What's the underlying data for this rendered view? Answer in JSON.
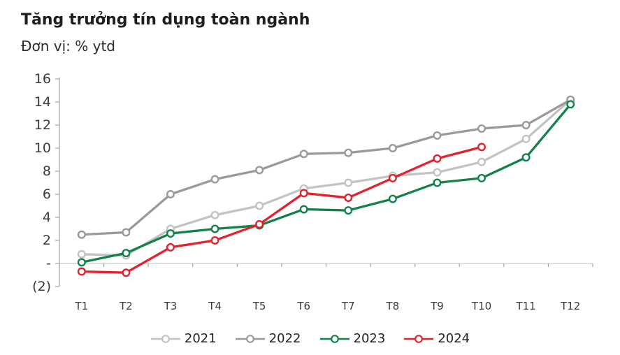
{
  "header": {
    "title": "Tăng trưởng tín dụng toàn ngành",
    "subtitle": "Đơn vị: % ytd"
  },
  "chart_data": {
    "type": "line",
    "title": "Tăng trưởng tín dụng toàn ngành",
    "unit_label": "Đơn vị: % ytd",
    "categories": [
      "T1",
      "T2",
      "T3",
      "T4",
      "T5",
      "T6",
      "T7",
      "T8",
      "T9",
      "T10",
      "T11",
      "T12"
    ],
    "series": [
      {
        "name": "2021",
        "color": "#c3c3c3",
        "values": [
          0.8,
          0.7,
          3.0,
          4.2,
          5.0,
          6.5,
          7.0,
          7.6,
          7.9,
          8.8,
          10.8,
          14.2
        ]
      },
      {
        "name": "2022",
        "color": "#9a9a9a",
        "values": [
          2.5,
          2.7,
          6.0,
          7.3,
          8.1,
          9.5,
          9.6,
          10.0,
          11.1,
          11.7,
          12.0,
          14.2
        ]
      },
      {
        "name": "2023",
        "color": "#13814a",
        "values": [
          0.1,
          0.9,
          2.6,
          3.0,
          3.3,
          4.7,
          4.6,
          5.6,
          7.0,
          7.4,
          9.2,
          13.8
        ]
      },
      {
        "name": "2024",
        "color": "#e2232e",
        "values": [
          -0.7,
          -0.8,
          1.4,
          2.0,
          3.4,
          6.1,
          5.7,
          7.4,
          9.1,
          10.1
        ]
      }
    ],
    "ylim": [
      -2,
      16
    ],
    "yticks": [
      {
        "value": 16,
        "label": "16"
      },
      {
        "value": 14,
        "label": "14"
      },
      {
        "value": 12,
        "label": "12"
      },
      {
        "value": 10,
        "label": "10"
      },
      {
        "value": 8,
        "label": "8"
      },
      {
        "value": 6,
        "label": "6"
      },
      {
        "value": 4,
        "label": "4"
      },
      {
        "value": 2,
        "label": "2"
      },
      {
        "value": 0,
        "label": "-"
      },
      {
        "value": -2,
        "label": "(2)"
      }
    ],
    "grid": "horizontal-zero-line-only",
    "legend_position": "bottom-center",
    "marker": "open-circle-white-fill",
    "axis_color": "#a6a6a6",
    "zero_line_color": "#c9c9c9"
  }
}
